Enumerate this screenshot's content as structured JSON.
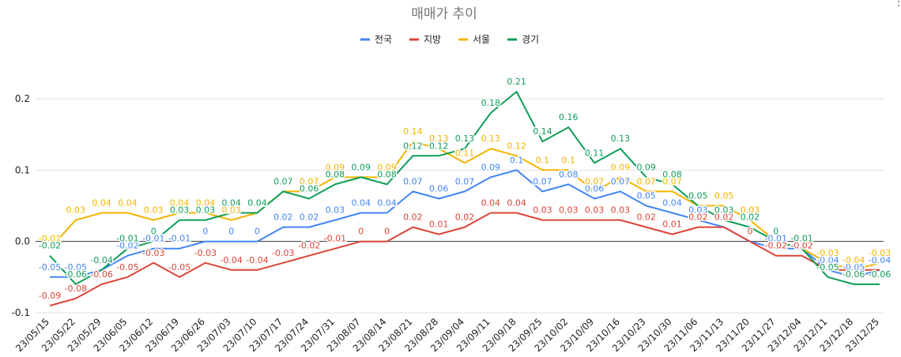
{
  "chart_data": {
    "type": "line",
    "title": "매매가 추이",
    "xlabel": "",
    "ylabel": "",
    "ylim": [
      -0.1,
      0.2
    ],
    "yticks": [
      -0.1,
      0.0,
      0.1,
      0.2
    ],
    "ytick_labels": [
      "-0.1",
      "0.0",
      "0.1",
      "0.2"
    ],
    "legend_position": "top",
    "grid": true,
    "categories": [
      "23/05/15",
      "23/05/22",
      "23/05/29",
      "23/06/05",
      "23/06/12",
      "23/06/19",
      "23/06/26",
      "23/07/03",
      "23/07/10",
      "23/07/17",
      "23/07/24",
      "23/07/31",
      "23/08/07",
      "23/08/14",
      "23/08/21",
      "23/08/28",
      "23/09/04",
      "23/09/11",
      "23/09/18",
      "23/09/25",
      "23/10/02",
      "23/10/09",
      "23/10/16",
      "23/10/23",
      "23/10/30",
      "23/11/06",
      "23/11/13",
      "23/11/20",
      "23/11/27",
      "23/12/04",
      "23/12/11",
      "23/12/18",
      "23/12/25"
    ],
    "series": [
      {
        "name": "전국",
        "color": "#4285f4",
        "values": [
          -0.05,
          -0.05,
          -0.04,
          -0.02,
          -0.01,
          -0.01,
          0,
          0,
          0,
          0.02,
          0.02,
          0.03,
          0.04,
          0.04,
          0.07,
          0.06,
          0.07,
          0.09,
          0.1,
          0.07,
          0.08,
          0.06,
          0.07,
          0.05,
          0.04,
          0.03,
          0.02,
          0,
          -0.01,
          -0.01,
          -0.04,
          -0.05,
          -0.04
        ],
        "labels": [
          "-0.05",
          "-0.05",
          "",
          "-0.02",
          "-0.01",
          "-0.01",
          "0",
          "0",
          "0",
          "0.02",
          "0.02",
          "0.03",
          "0.04",
          "0.04",
          "0.07",
          "0.06",
          "0.07",
          "0.09",
          "0.1",
          "0.07",
          "0.08",
          "0.06",
          "0.07",
          "0.05",
          "0.04",
          "0.03",
          "0.02",
          "",
          "-0.01",
          "",
          "-0.04",
          "-0.05",
          "-0.04"
        ]
      },
      {
        "name": "지방",
        "color": "#db4437",
        "values": [
          -0.09,
          -0.08,
          -0.06,
          -0.05,
          -0.03,
          -0.05,
          -0.03,
          -0.04,
          -0.04,
          -0.03,
          -0.02,
          -0.01,
          0,
          0,
          0.02,
          0.01,
          0.02,
          0.04,
          0.04,
          0.03,
          0.03,
          0.03,
          0.03,
          0.02,
          0.01,
          0.02,
          0.02,
          0,
          -0.02,
          -0.02,
          -0.04,
          -0.04,
          -0.04
        ],
        "labels": [
          "-0.09",
          "-0.08",
          "-0.06",
          "-0.05",
          "-0.03",
          "-0.05",
          "-0.03",
          "-0.04",
          "-0.04",
          "-0.03",
          "-0.02",
          "-0.01",
          "0",
          "0",
          "0.02",
          "0.01",
          "0.02",
          "0.04",
          "0.04",
          "0.03",
          "0.03",
          "0.03",
          "0.03",
          "0.02",
          "0.01",
          "0.02",
          "0.02",
          "0",
          "-0.02",
          "-0.02",
          "",
          "",
          ""
        ]
      },
      {
        "name": "서울",
        "color": "#f4b400",
        "values": [
          -0.01,
          0.03,
          0.04,
          0.04,
          0.03,
          0.04,
          0.04,
          0.03,
          0.04,
          0.07,
          0.07,
          0.09,
          0.09,
          0.09,
          0.14,
          0.13,
          0.11,
          0.13,
          0.12,
          0.1,
          0.1,
          0.07,
          0.09,
          0.07,
          0.07,
          0.05,
          0.05,
          0.03,
          0,
          -0.01,
          -0.03,
          -0.04,
          -0.03
        ],
        "labels": [
          "-0.01",
          "0.03",
          "0.04",
          "0.04",
          "0.03",
          "0.04",
          "0.04",
          "0.03",
          "",
          "0.07",
          "0.07",
          "0.09",
          "",
          "0.09",
          "0.14",
          "0.13",
          "0.11",
          "0.13",
          "0.12",
          "0.1",
          "0.1",
          "0.07",
          "0.09",
          "0.07",
          "0.07",
          "",
          "0.05",
          "0.03",
          "",
          "",
          "-0.03",
          "-0.04",
          "-0.03"
        ]
      },
      {
        "name": "경기",
        "color": "#0f9d58",
        "values": [
          -0.02,
          -0.06,
          -0.04,
          -0.01,
          0,
          0.03,
          0.03,
          0.04,
          0.04,
          0.07,
          0.06,
          0.08,
          0.09,
          0.08,
          0.12,
          0.12,
          0.13,
          0.18,
          0.21,
          0.14,
          0.16,
          0.11,
          0.13,
          0.09,
          0.08,
          0.05,
          0.03,
          0.02,
          0,
          -0.01,
          -0.05,
          -0.06,
          -0.06
        ],
        "labels": [
          "-0.02",
          "-0.06",
          "-0.04",
          "-0.01",
          "0",
          "0.03",
          "0.03",
          "0.04",
          "0.04",
          "0.07",
          "0.06",
          "0.08",
          "0.09",
          "0.08",
          "0.12",
          "0.12",
          "0.13",
          "0.18",
          "0.21",
          "0.14",
          "0.16",
          "0.11",
          "0.13",
          "0.09",
          "0.08",
          "0.05",
          "0.03",
          "0.02",
          "0",
          "-0.01",
          "-0.05",
          "-0.06",
          "-0.06"
        ]
      }
    ]
  },
  "menu_icon": "more-vertical-icon"
}
